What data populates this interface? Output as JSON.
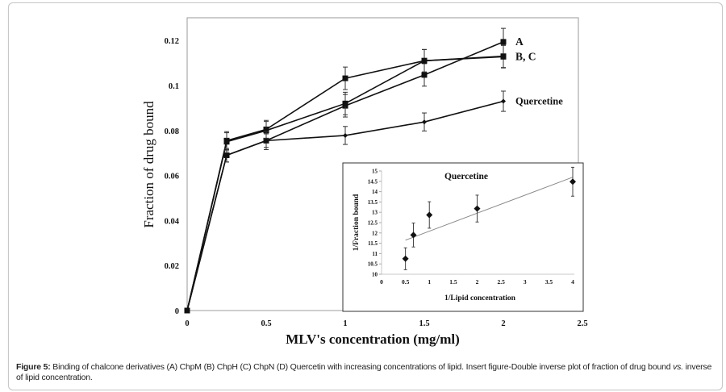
{
  "figure": {
    "caption_label": "Figure 5:",
    "caption_text_1": " Binding of chalcone derivatives (A) ChpM (B) ChpH (C) ChpN (D) Quercetin with increasing concentrations of lipid. Insert figure-Double inverse plot of fraction of drug bound ",
    "caption_italic": "vs.",
    "caption_text_2": " inverse of lipid concentration."
  },
  "chart_data": [
    {
      "type": "line",
      "title": "",
      "xlabel": "MLV's concentration (mg/ml)",
      "ylabel": "Fraction of drug bound",
      "xlim": [
        0,
        2.5
      ],
      "ylim": [
        0,
        0.13
      ],
      "xticks": [
        0,
        0.5,
        1,
        1.5,
        2,
        2.5
      ],
      "xtick_labels": [
        "0",
        "0.5",
        "1",
        "1.5",
        "2",
        "2.5"
      ],
      "yticks": [
        0,
        0.02,
        0.04,
        0.06,
        0.08,
        0.1,
        0.12
      ],
      "ytick_labels": [
        "0",
        "0.02",
        "0.04",
        "0.06",
        "0.08",
        "0.1",
        "0.12"
      ],
      "grid": false,
      "x": [
        0,
        0.25,
        0.5,
        1,
        1.5,
        2
      ],
      "series": [
        {
          "name": "A",
          "marker": "square",
          "values": [
            0,
            0.069,
            0.0755,
            0.091,
            0.1047,
            0.1194
          ],
          "errors": [
            0,
            0.003,
            0.003,
            0.005,
            0.005,
            0.006
          ]
        },
        {
          "name": "B",
          "marker": "square",
          "values": [
            0,
            0.0755,
            0.0805,
            0.1032,
            0.111,
            0.113
          ],
          "errors": [
            0,
            0.004,
            0.004,
            0.005,
            0.005,
            0.005
          ]
        },
        {
          "name": "C",
          "marker": "square",
          "values": [
            0,
            0.075,
            0.08,
            0.092,
            0.111,
            0.1128
          ],
          "errors": [
            0,
            0.004,
            0.004,
            0.005,
            0.005,
            0.005
          ]
        },
        {
          "name": "Quercetine",
          "marker": "diamond",
          "values": [
            0,
            0.069,
            0.0755,
            0.0778,
            0.0838,
            0.093
          ],
          "errors": [
            0,
            0.003,
            0.004,
            0.004,
            0.004,
            0.0045
          ]
        }
      ],
      "annotations": [
        {
          "text": "A",
          "x": 2,
          "y": 0.1194
        },
        {
          "text": "B, C",
          "x": 2,
          "y": 0.1128
        },
        {
          "text": "Quercetine",
          "x": 2,
          "y": 0.093
        }
      ]
    },
    {
      "type": "scatter",
      "title": "Quercetine",
      "xlabel": "1/Lipid concentration",
      "ylabel": "1/Fraction bound",
      "xlim": [
        0,
        4
      ],
      "ylim": [
        10,
        15
      ],
      "xticks": [
        0,
        0.5,
        1,
        1.5,
        2,
        2.5,
        3,
        3.5,
        4
      ],
      "xtick_labels": [
        "0",
        "0.5",
        "1",
        "1.5",
        "2",
        "2.5",
        "3",
        "3.5",
        "4"
      ],
      "yticks": [
        10,
        10.5,
        11,
        11.5,
        12,
        12.5,
        13,
        13.5,
        14,
        14.5,
        15
      ],
      "ytick_labels": [
        "10",
        "10.5",
        "11",
        "11.5",
        "12",
        "12.5",
        "13",
        "13.5",
        "14",
        "14.5",
        "15"
      ],
      "grid": false,
      "x": [
        0.5,
        0.667,
        1,
        2,
        4
      ],
      "y": [
        10.75,
        11.9,
        12.87,
        13.18,
        14.48
      ],
      "errors": [
        0.53,
        0.58,
        0.64,
        0.65,
        0.7
      ],
      "trendline": {
        "x": [
          0.5,
          4
        ],
        "y": [
          11.65,
          14.7
        ]
      }
    }
  ]
}
